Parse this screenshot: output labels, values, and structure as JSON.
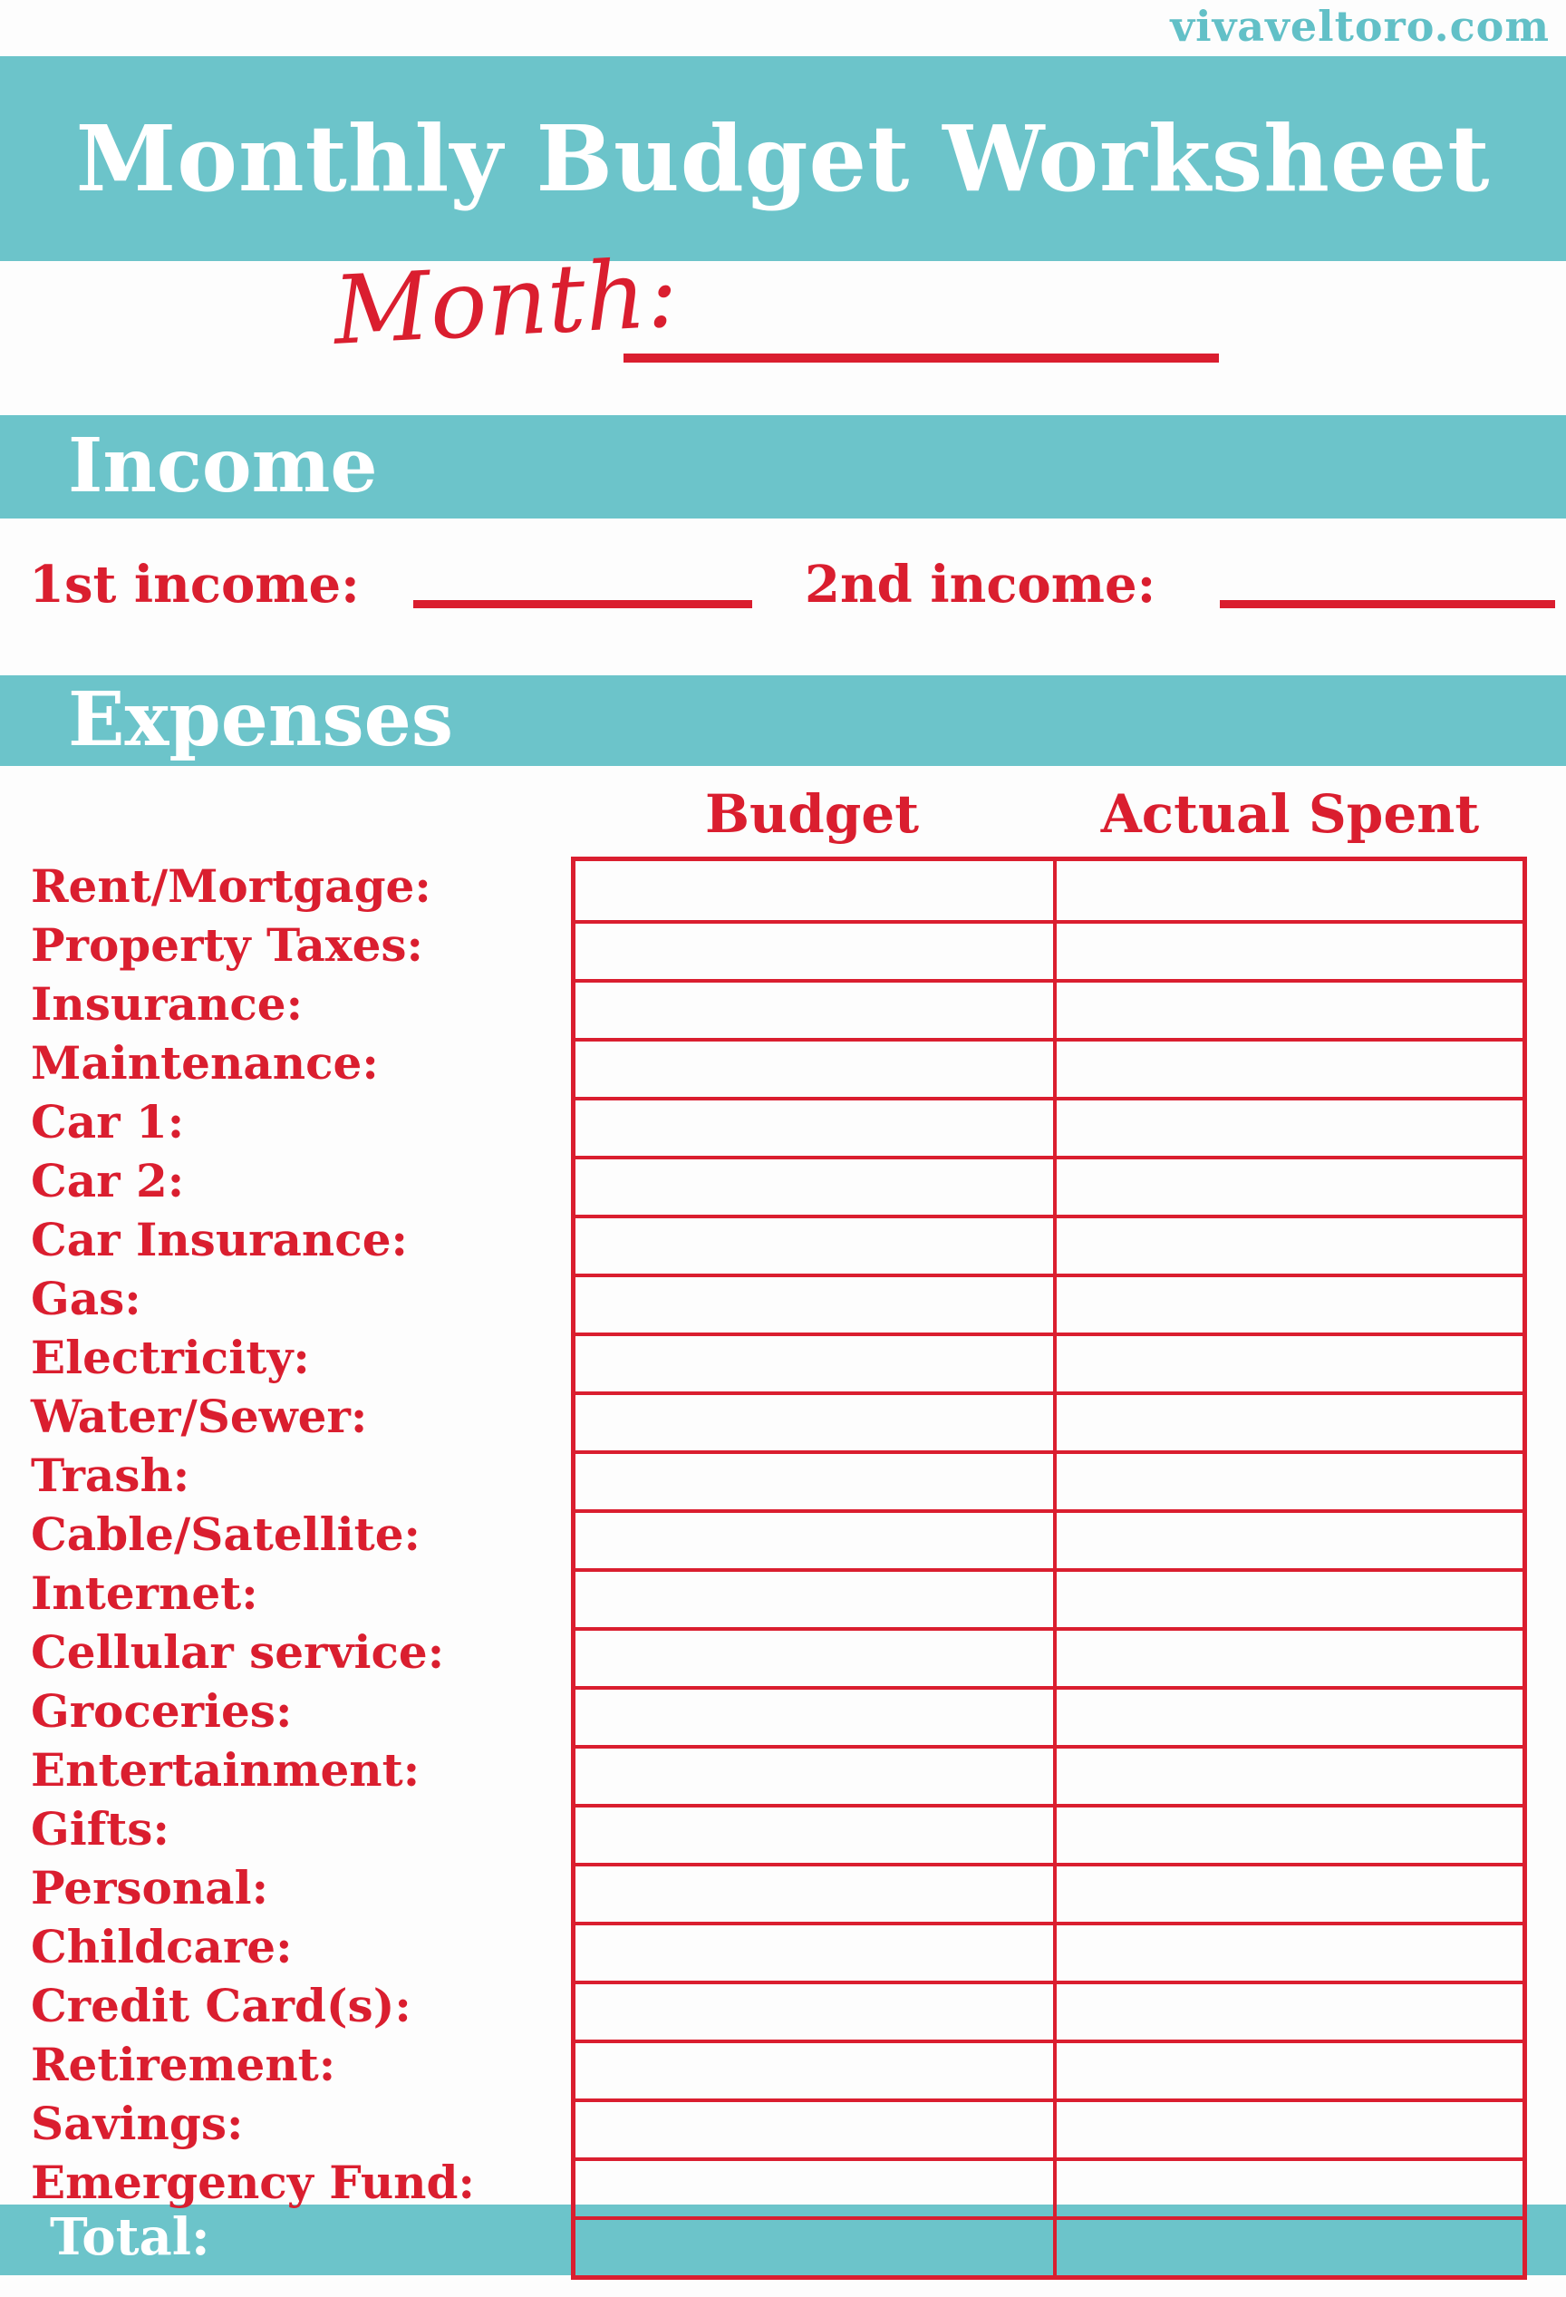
{
  "site": "vivaveltoro.com",
  "title": "Monthly Budget Worksheet",
  "month_label": "Month:",
  "income": {
    "heading": "Income",
    "fields": [
      {
        "label": "1st income:"
      },
      {
        "label": "2nd income:"
      }
    ]
  },
  "expenses": {
    "heading": "Expenses",
    "columns": [
      "Budget",
      "Actual Spent"
    ],
    "rows": [
      "Rent/Mortgage:",
      "Property Taxes:",
      "Insurance:",
      "Maintenance:",
      "Car 1:",
      "Car 2:",
      "Car Insurance:",
      "Gas:",
      "Electricity:",
      "Water/Sewer:",
      "Trash:",
      "Cable/Satellite:",
      "Internet:",
      "Cellular service:",
      "Groceries:",
      "Entertainment:",
      "Gifts:",
      "Personal:",
      "Childcare:",
      "Credit Card(s):",
      "Retirement:",
      "Savings:",
      "Emergency Fund:"
    ],
    "total_label": "Total:"
  },
  "colors": {
    "teal": "#6CC4CA",
    "red": "#DA1E2F",
    "site_teal": "#62C0C7"
  }
}
